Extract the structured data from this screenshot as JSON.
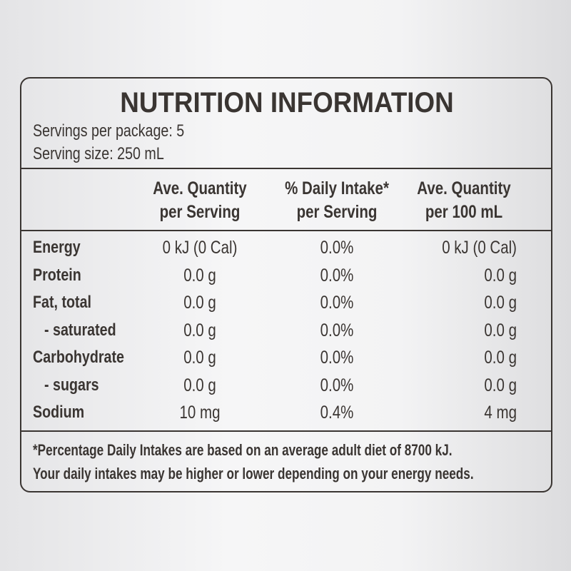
{
  "label": {
    "title": "NUTRITION INFORMATION",
    "servings_per_package": "Servings per package: 5",
    "serving_size": "Serving size: 250 mL",
    "table": {
      "headers": [
        [
          "Ave. Quantity",
          "per Serving"
        ],
        [
          "% Daily Intake*",
          "per Serving"
        ],
        [
          "Ave. Quantity",
          "per 100 mL"
        ]
      ],
      "rows": [
        [
          "Energy",
          "0 kJ (0 Cal)",
          "0.0%",
          "0 kJ (0 Cal)"
        ],
        [
          "Protein",
          "0.0 g",
          "0.0%",
          "0.0 g"
        ],
        [
          "Fat, total",
          "0.0 g",
          "0.0%",
          "0.0 g"
        ],
        [
          "- saturated",
          "0.0 g",
          "0.0%",
          "0.0 g"
        ],
        [
          "Carbohydrate",
          "0.0 g",
          "0.0%",
          "0.0 g"
        ],
        [
          "- sugars",
          "0.0 g",
          "0.0%",
          "0.0 g"
        ],
        [
          "Sodium",
          "10 mg",
          "0.4%",
          "4 mg"
        ]
      ]
    },
    "footnote": [
      "*Percentage Daily Intakes are based on an average adult diet of 8700 kJ.",
      "Your daily intakes may be higher or lower depending on your energy needs."
    ]
  }
}
